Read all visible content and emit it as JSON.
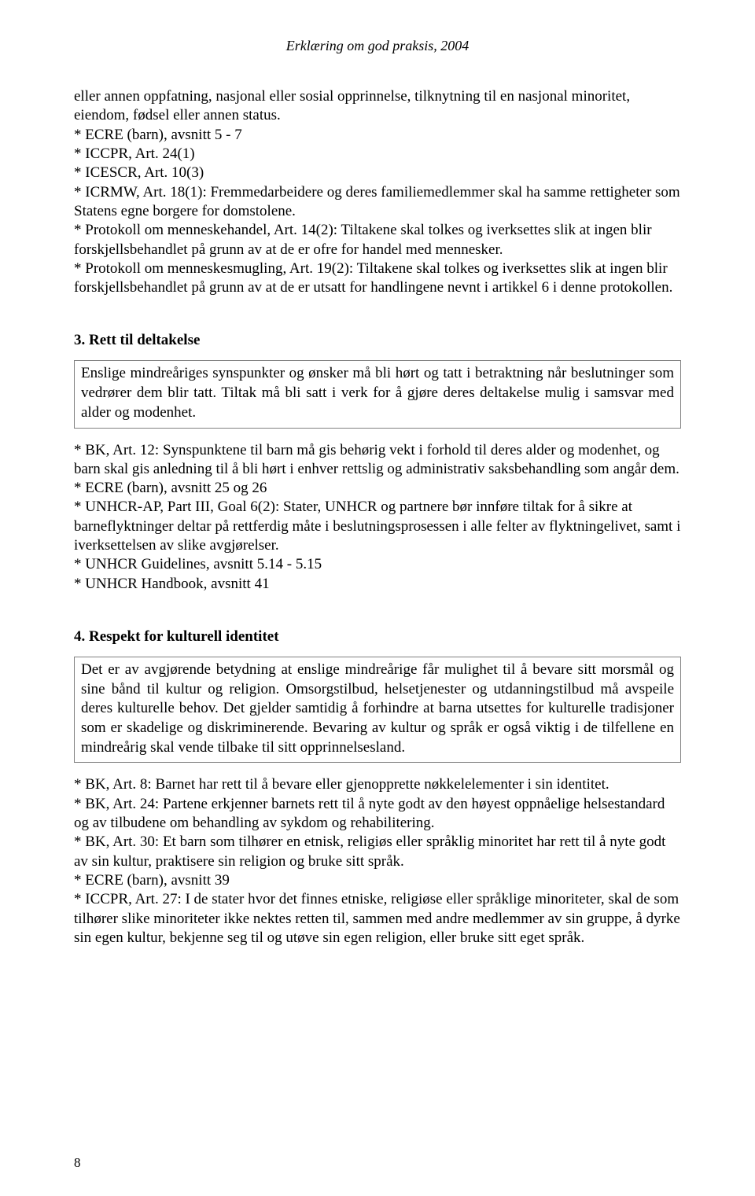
{
  "header": "Erklæring om god praksis, 2004",
  "intro": "eller annen oppfatning, nasjonal eller sosial opprinnelse, tilknytning til en nasjonal minoritet, eiendom, fødsel eller annen status.",
  "refs1": [
    "* ECRE (barn), avsnitt 5 - 7",
    "* ICCPR, Art. 24(1)",
    "* ICESCR, Art. 10(3)",
    "* ICRMW, Art. 18(1): Fremmedarbeidere og deres familiemedlemmer skal ha samme rettigheter som Statens egne borgere for domstolene.",
    "* Protokoll om menneskehandel, Art. 14(2): Tiltakene skal tolkes og iverksettes slik at ingen blir forskjellsbehandlet på grunn av at de er ofre for handel med mennesker.",
    "* Protokoll om menneskesmugling, Art. 19(2): Tiltakene skal tolkes og iverksettes slik at ingen blir forskjellsbehandlet på grunn av at de er utsatt for handlingene nevnt i artikkel 6 i denne protokollen."
  ],
  "section3": {
    "title": "3. Rett til deltakelse",
    "box": "Enslige mindreåriges synspunkter og ønsker må bli hørt og tatt i betraktning når beslutninger som vedrører dem blir tatt. Tiltak må bli satt i verk for å gjøre deres deltakelse mulig i samsvar med alder og modenhet.",
    "refs": [
      "* BK, Art. 12: Synspunktene til barn må gis behørig vekt i forhold til deres alder og modenhet, og barn skal gis anledning til å bli hørt i enhver rettslig og administrativ saksbehandling som angår dem.",
      "* ECRE (barn), avsnitt 25 og 26",
      "* UNHCR-AP, Part III, Goal 6(2): Stater, UNHCR og partnere bør innføre tiltak for å sikre at barneflyktninger deltar på rettferdig måte i beslutningsprosessen i alle felter av flyktningelivet, samt i iverksettelsen av slike avgjørelser.",
      "* UNHCR Guidelines, avsnitt 5.14 - 5.15",
      "* UNHCR Handbook, avsnitt 41"
    ]
  },
  "section4": {
    "title": "4. Respekt for kulturell identitet",
    "box": "Det er av avgjørende betydning at enslige mindreårige får mulighet til å bevare sitt morsmål og sine bånd til kultur og religion. Omsorgstilbud, helsetjenester og utdanningstilbud må avspeile deres kulturelle behov. Det gjelder samtidig å forhindre at barna utsettes for kulturelle tradisjoner som er skadelige og diskriminerende. Bevaring av kultur og språk er også viktig i de tilfellene en mindreårig skal vende tilbake til sitt opprinnelsesland.",
    "refs": [
      "* BK, Art. 8: Barnet har rett til å bevare eller gjenopprette nøkkelelementer i sin identitet.",
      "* BK, Art. 24: Partene erkjenner barnets rett til å nyte godt av den høyest oppnåelige helsestandard og av tilbudene om behandling av sykdom og rehabilitering.",
      "* BK, Art. 30: Et barn som tilhører en etnisk, religiøs eller språklig minoritet har rett til å nyte godt av sin kultur, praktisere sin religion og bruke sitt språk.",
      "* ECRE (barn), avsnitt 39",
      "* ICCPR, Art. 27: I de stater hvor det finnes etniske, religiøse eller språklige minoriteter, skal de som tilhører slike minoriteter ikke nektes retten til, sammen med andre medlemmer av sin gruppe, å dyrke sin egen kultur, bekjenne seg til og utøve sin egen religion, eller bruke sitt eget språk."
    ]
  },
  "pageNumber": "8",
  "style": {
    "pageWidth": 960,
    "pageHeight": 1521,
    "background": "#ffffff",
    "textColor": "#000000",
    "boxBorder": "#808080",
    "bodyFontSize": 19,
    "headerFontSize": 18,
    "lineHeight": 1.28
  }
}
